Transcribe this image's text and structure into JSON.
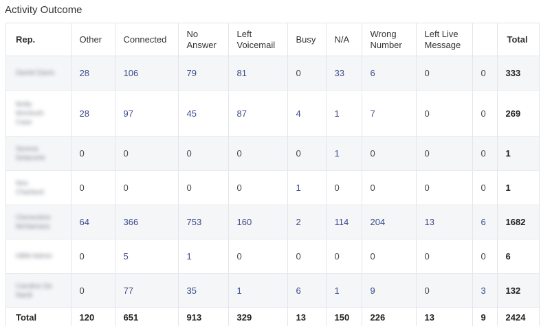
{
  "title": "Activity Outcome",
  "columns": [
    "Rep.",
    "Other",
    "Connected",
    "No Answer",
    "Left Voicemail",
    "Busy",
    "N/A",
    "Wrong Number",
    "Left Live Message",
    "",
    "Total"
  ],
  "rows": [
    {
      "rep": "Daniel Davis",
      "values": [
        "28",
        "106",
        "79",
        "81",
        "0",
        "33",
        "6",
        "0",
        "0",
        "333"
      ]
    },
    {
      "rep": "Molly McIntosh Case",
      "values": [
        "28",
        "97",
        "45",
        "87",
        "4",
        "1",
        "7",
        "0",
        "0",
        "269"
      ]
    },
    {
      "rep": "Serena Delacorte",
      "values": [
        "0",
        "0",
        "0",
        "0",
        "0",
        "1",
        "0",
        "0",
        "0",
        "1"
      ]
    },
    {
      "rep": "Nes Charland",
      "values": [
        "0",
        "0",
        "0",
        "0",
        "1",
        "0",
        "0",
        "0",
        "0",
        "1"
      ]
    },
    {
      "rep": "Clementine McNamara",
      "values": [
        "64",
        "366",
        "753",
        "160",
        "2",
        "114",
        "204",
        "13",
        "6",
        "1682"
      ]
    },
    {
      "rep": "HBM Admin",
      "values": [
        "0",
        "5",
        "1",
        "0",
        "0",
        "0",
        "0",
        "0",
        "0",
        "6"
      ]
    },
    {
      "rep": "Caroline De Nardi",
      "values": [
        "0",
        "77",
        "35",
        "1",
        "6",
        "1",
        "9",
        "0",
        "3",
        "132"
      ]
    }
  ],
  "totals": {
    "label": "Total",
    "values": [
      "120",
      "651",
      "913",
      "329",
      "13",
      "150",
      "226",
      "13",
      "9",
      "2424"
    ]
  }
}
